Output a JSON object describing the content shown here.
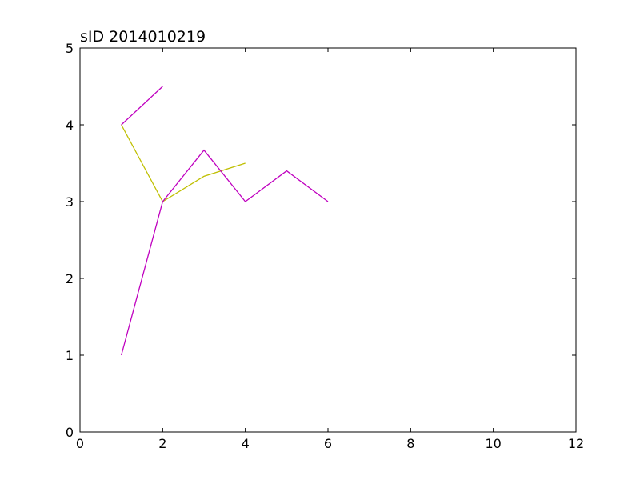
{
  "chart_data": {
    "type": "line",
    "title": "sID 2014010219",
    "xlabel": "",
    "ylabel": "",
    "xlim": [
      0,
      12
    ],
    "ylim": [
      0,
      5
    ],
    "xticks": [
      0,
      2,
      4,
      6,
      8,
      10,
      12
    ],
    "yticks": [
      0,
      1,
      2,
      3,
      4,
      5
    ],
    "grid": false,
    "series": [
      {
        "color": "#bfbf00",
        "x": [
          1,
          2,
          3,
          4
        ],
        "y": [
          4.0,
          3.0,
          3.33,
          3.5
        ]
      },
      {
        "color": "#bf00bf",
        "x": [
          1,
          2
        ],
        "y": [
          4.0,
          4.5
        ]
      },
      {
        "color": "#bf00bf",
        "x": [
          1,
          2,
          3,
          4,
          5,
          6
        ],
        "y": [
          1.0,
          3.0,
          3.67,
          3.0,
          3.4,
          3.0
        ]
      }
    ]
  }
}
